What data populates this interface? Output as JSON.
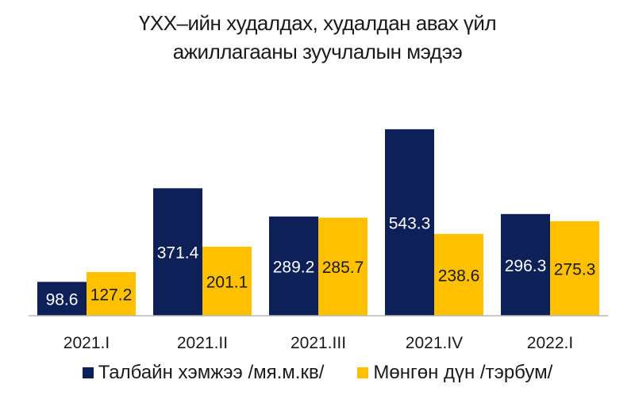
{
  "colors": {
    "series_1": "#0d2057",
    "series_2": "#ffc000",
    "axis": "#b8b8b8"
  },
  "chart_data": {
    "type": "bar",
    "title_line1": "ҮХХ–ийн худалдах, худалдан авах үйл",
    "title_line2": "ажиллагааны зуучлалын мэдээ",
    "categories": [
      "2021.I",
      "2021.II",
      "2021.III",
      "2021.IV",
      "2022.I"
    ],
    "series": [
      {
        "name": "Талбайн хэмжээ /мя.м.кв/",
        "values": [
          98.6,
          371.4,
          289.2,
          543.3,
          296.3
        ]
      },
      {
        "name": "Мөнгөн дүн /тэрбум/",
        "values": [
          127.2,
          201.1,
          285.7,
          238.6,
          275.3
        ]
      }
    ],
    "value_labels": [
      [
        "98.6",
        "371.4",
        "289.2",
        "543.3",
        "296.3"
      ],
      [
        "127.2",
        "201.1",
        "285.7",
        "238.6",
        "275.3"
      ]
    ],
    "ylim": [
      0,
      550
    ],
    "grid": false,
    "legend_position": "bottom"
  }
}
